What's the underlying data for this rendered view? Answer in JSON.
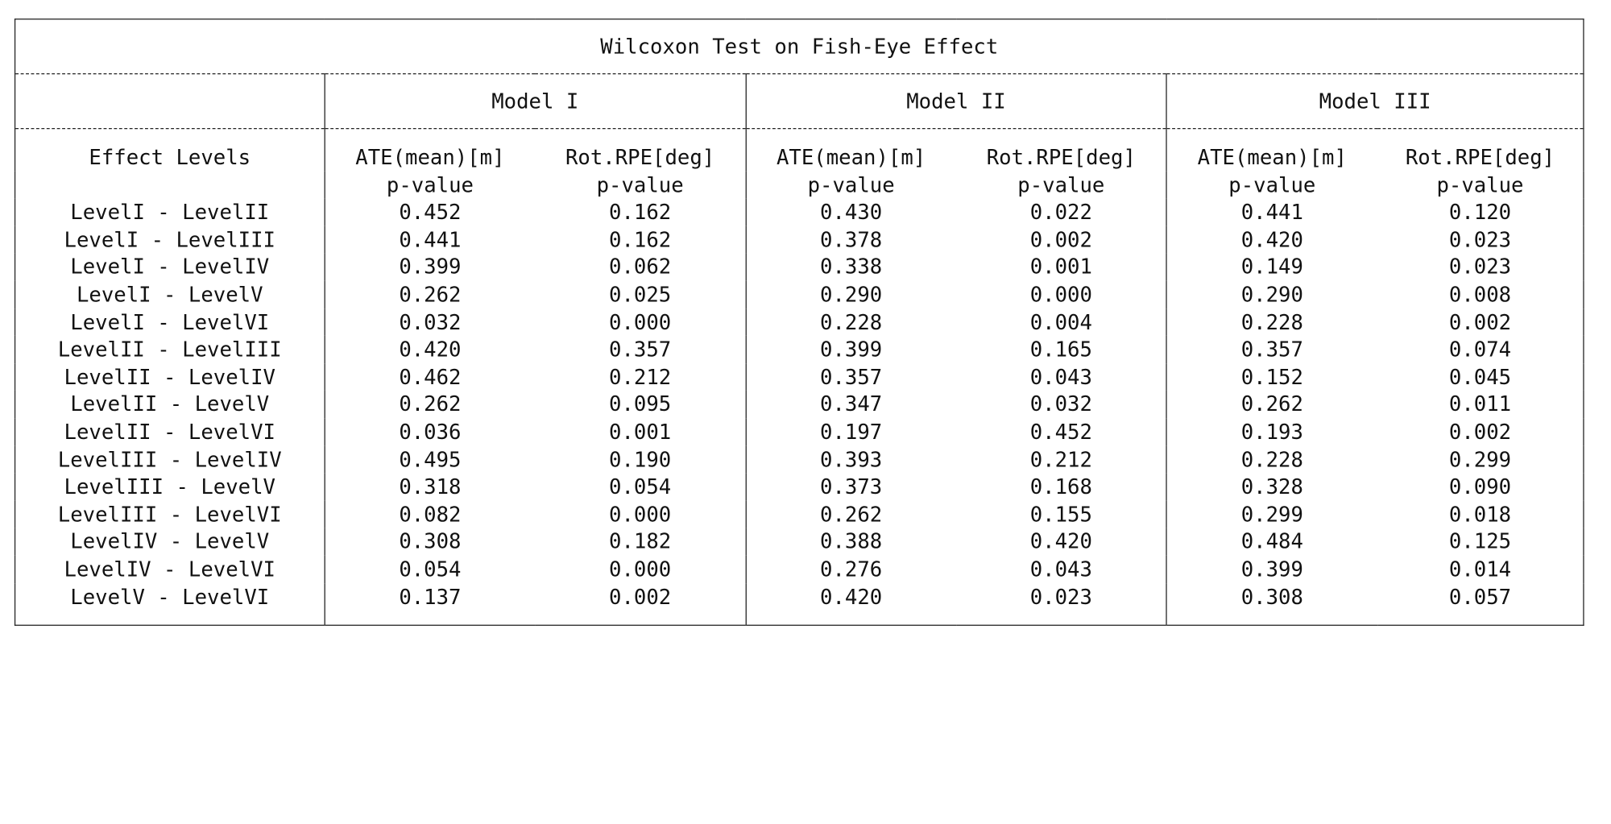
{
  "title": "Wilcoxon Test on Fish-Eye Effect",
  "models": [
    "Model I",
    "Model II",
    "Model III"
  ],
  "header": {
    "row_label": "Effect Levels",
    "col1_line1": "ATE(mean)[m]",
    "col2_line1": "Rot.RPE[deg]",
    "line2": "p-value"
  },
  "rows": [
    {
      "label": "LevelI - LevelII",
      "values": [
        "0.452",
        "0.162",
        "0.430",
        "0.022",
        "0.441",
        "0.120"
      ]
    },
    {
      "label": "LevelI - LevelIII",
      "values": [
        "0.441",
        "0.162",
        "0.378",
        "0.002",
        "0.420",
        "0.023"
      ]
    },
    {
      "label": "LevelI - LevelIV",
      "values": [
        "0.399",
        "0.062",
        "0.338",
        "0.001",
        "0.149",
        "0.023"
      ]
    },
    {
      "label": "LevelI - LevelV",
      "values": [
        "0.262",
        "0.025",
        "0.290",
        "0.000",
        "0.290",
        "0.008"
      ]
    },
    {
      "label": "LevelI - LevelVI",
      "values": [
        "0.032",
        "0.000",
        "0.228",
        "0.004",
        "0.228",
        "0.002"
      ]
    },
    {
      "label": "LevelII - LevelIII",
      "values": [
        "0.420",
        "0.357",
        "0.399",
        "0.165",
        "0.357",
        "0.074"
      ]
    },
    {
      "label": "LevelII - LevelIV",
      "values": [
        "0.462",
        "0.212",
        "0.357",
        "0.043",
        "0.152",
        "0.045"
      ]
    },
    {
      "label": "LevelII - LevelV",
      "values": [
        "0.262",
        "0.095",
        "0.347",
        "0.032",
        "0.262",
        "0.011"
      ]
    },
    {
      "label": "LevelII - LevelVI",
      "values": [
        "0.036",
        "0.001",
        "0.197",
        "0.452",
        "0.193",
        "0.002"
      ]
    },
    {
      "label": "LevelIII - LevelIV",
      "values": [
        "0.495",
        "0.190",
        "0.393",
        "0.212",
        "0.228",
        "0.299"
      ]
    },
    {
      "label": "LevelIII - LevelV",
      "values": [
        "0.318",
        "0.054",
        "0.373",
        "0.168",
        "0.328",
        "0.090"
      ]
    },
    {
      "label": "LevelIII - LevelVI",
      "values": [
        "0.082",
        "0.000",
        "0.262",
        "0.155",
        "0.299",
        "0.018"
      ]
    },
    {
      "label": "LevelIV - LevelV",
      "values": [
        "0.308",
        "0.182",
        "0.388",
        "0.420",
        "0.484",
        "0.125"
      ]
    },
    {
      "label": "LevelIV - LevelVI",
      "values": [
        "0.054",
        "0.000",
        "0.276",
        "0.043",
        "0.399",
        "0.014"
      ]
    },
    {
      "label": "LevelV - LevelVI",
      "values": [
        "0.137",
        "0.002",
        "0.420",
        "0.023",
        "0.308",
        "0.057"
      ]
    }
  ]
}
